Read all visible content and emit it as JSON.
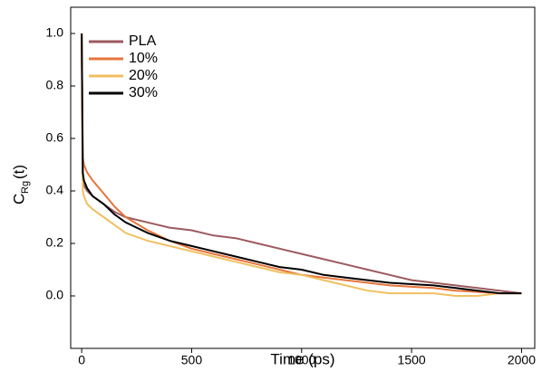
{
  "chart_data": {
    "type": "line",
    "xlabel": "Time (ps)",
    "ylabel": "C",
    "ylabel_sub": "Rg",
    "ylabel_suffix": "(t)",
    "x": [
      0,
      5,
      10,
      25,
      50,
      100,
      150,
      200,
      300,
      400,
      500,
      600,
      700,
      800,
      900,
      1000,
      1100,
      1200,
      1300,
      1400,
      1500,
      1600,
      1700,
      1800,
      1900,
      2000
    ],
    "series": [
      {
        "name": "PLA",
        "color": "#9c5a5f",
        "values": [
          1.0,
          0.45,
          0.42,
          0.4,
          0.38,
          0.35,
          0.32,
          0.3,
          0.28,
          0.26,
          0.25,
          0.23,
          0.22,
          0.2,
          0.18,
          0.16,
          0.14,
          0.12,
          0.1,
          0.08,
          0.06,
          0.05,
          0.04,
          0.03,
          0.02,
          0.01
        ]
      },
      {
        "name": "10%",
        "color": "#e8743b",
        "values": [
          1.0,
          0.53,
          0.5,
          0.47,
          0.44,
          0.39,
          0.34,
          0.3,
          0.25,
          0.21,
          0.18,
          0.16,
          0.14,
          0.12,
          0.1,
          0.08,
          0.07,
          0.06,
          0.05,
          0.04,
          0.035,
          0.03,
          0.02,
          0.015,
          0.01,
          0.01
        ]
      },
      {
        "name": "20%",
        "color": "#f0c060",
        "values": [
          1.0,
          0.4,
          0.38,
          0.35,
          0.33,
          0.3,
          0.27,
          0.24,
          0.21,
          0.19,
          0.17,
          0.15,
          0.13,
          0.11,
          0.09,
          0.08,
          0.06,
          0.04,
          0.02,
          0.01,
          0.01,
          0.01,
          0.0,
          0.0,
          0.01,
          0.01
        ]
      },
      {
        "name": "30%",
        "color": "#000000",
        "values": [
          1.0,
          0.47,
          0.44,
          0.41,
          0.38,
          0.35,
          0.31,
          0.28,
          0.24,
          0.21,
          0.19,
          0.17,
          0.15,
          0.13,
          0.11,
          0.1,
          0.08,
          0.07,
          0.06,
          0.05,
          0.045,
          0.04,
          0.03,
          0.02,
          0.01,
          0.01
        ]
      }
    ],
    "xlim": [
      -50,
      2060
    ],
    "xticks": [
      0,
      500,
      1000,
      1500,
      2000
    ],
    "ylim": [
      -0.2,
      1.1
    ],
    "yticks": [
      {
        "value": 0,
        "label": "0.0"
      },
      0.2,
      0.4,
      0.6,
      0.8,
      {
        "value": 1,
        "label": "1.0"
      }
    ],
    "legend": "top-left"
  }
}
